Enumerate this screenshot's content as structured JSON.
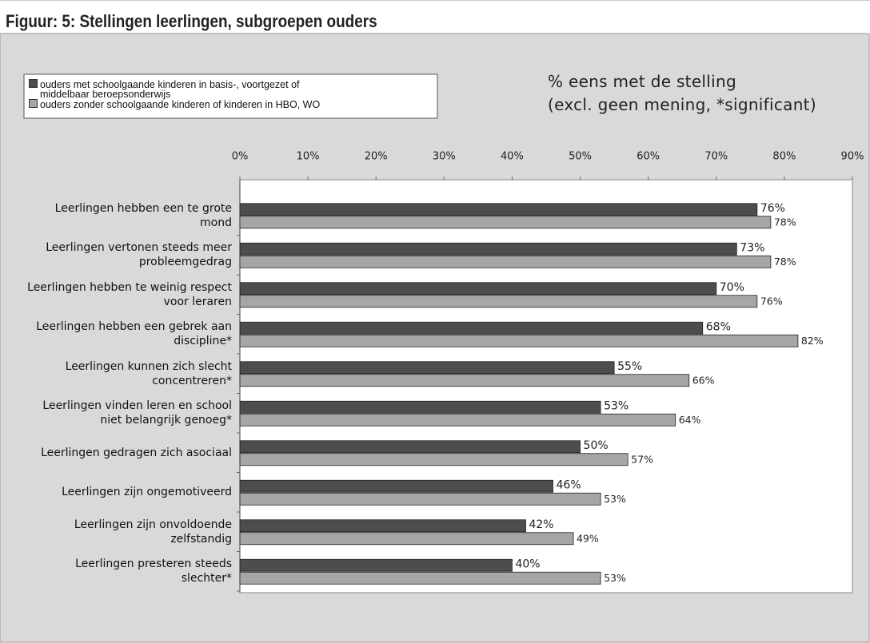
{
  "chart_data": {
    "type": "bar",
    "orientation": "horizontal",
    "title": "Figuur: 5: Stellingen leerlingen, subgroepen ouders",
    "annotations": [
      "% eens met de stelling",
      "(excl. geen mening, *significant)"
    ],
    "categories": [
      "Leerlingen hebben een te grote mond",
      "Leerlingen vertonen steeds meer probleemgedrag",
      "Leerlingen hebben te weinig respect voor leraren",
      "Leerlingen hebben een gebrek aan discipline*",
      "Leerlingen kunnen zich slecht concentreren*",
      "Leerlingen vinden leren en school niet belangrijk genoeg*",
      "Leerlingen gedragen zich asociaal",
      "Leerlingen zijn ongemotiveerd",
      "Leerlingen zijn onvoldoende zelfstandig",
      "Leerlingen presteren steeds slechter*"
    ],
    "series": [
      {
        "name": "ouders met schoolgaande kinderen in basis-, voortgezet of middelbaar beroepsonderwijs",
        "color": "#4d4d4d",
        "values": [
          76,
          73,
          70,
          68,
          55,
          53,
          50,
          46,
          42,
          40
        ],
        "value_labels": [
          "76%",
          "73%",
          "70%",
          "68%",
          "55%",
          "53%",
          "50%",
          "46%",
          "42%",
          "40%"
        ]
      },
      {
        "name": "ouders zonder schoolgaande kinderen of kinderen in HBO, WO",
        "color": "#a6a6a6",
        "values": [
          78,
          78,
          76,
          82,
          66,
          64,
          57,
          53,
          49,
          53
        ],
        "value_labels": [
          "78%",
          "78%",
          "76%",
          "82%",
          "66%",
          "64%",
          "57%",
          "53%",
          "49%",
          "53%"
        ]
      }
    ],
    "xlim": [
      0,
      90
    ],
    "xticks": [
      {
        "value": 0,
        "label": "0%"
      },
      {
        "value": 10,
        "label": "10%"
      },
      {
        "value": 20,
        "label": "20%"
      },
      {
        "value": 30,
        "label": "30%"
      },
      {
        "value": 40,
        "label": "40%"
      },
      {
        "value": 50,
        "label": "50%"
      },
      {
        "value": 60,
        "label": "60%"
      },
      {
        "value": 70,
        "label": "70%"
      },
      {
        "value": 80,
        "label": "80%"
      },
      {
        "value": 90,
        "label": "90%"
      }
    ],
    "grid": false
  }
}
